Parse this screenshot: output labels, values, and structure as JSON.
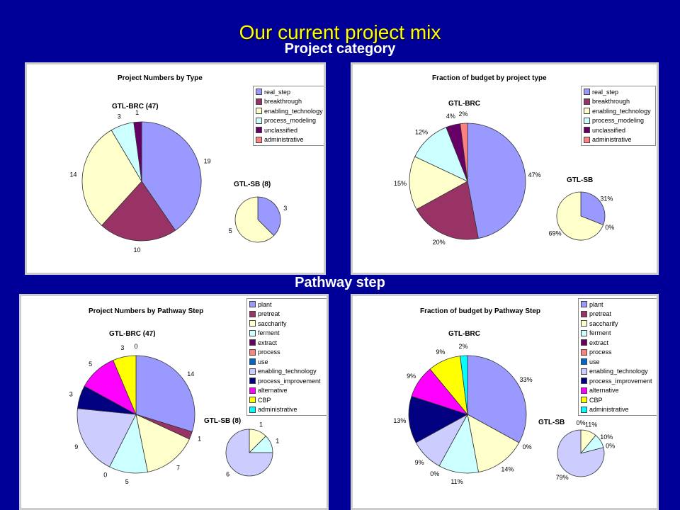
{
  "slide": {
    "title": "Our current project mix",
    "section_category": "Project category",
    "section_pathway": "Pathway step"
  },
  "colors": {
    "background": "#000099",
    "title": "#FFFF00"
  },
  "chart_data": [
    {
      "type": "pie",
      "title": "Project Numbers by Type",
      "legend_position": "top-right",
      "legend": [
        "real_step",
        "breakthrough",
        "enabling_technology",
        "process_modeling",
        "unclassified",
        "administrative"
      ],
      "colors": [
        "#9999FF",
        "#993366",
        "#FFFFCC",
        "#CCFFFF",
        "#660066",
        "#FF8080"
      ],
      "pies": [
        {
          "name": "GTL-BRC (47)",
          "values": [
            19,
            10,
            14,
            3,
            1,
            0
          ],
          "labels": [
            "19",
            "10",
            "14",
            "3",
            "1",
            ""
          ]
        },
        {
          "name": "GTL-SB (8)",
          "values": [
            3,
            0,
            5,
            0,
            0,
            0
          ],
          "labels": [
            "3",
            "",
            "5",
            "",
            "",
            ""
          ]
        }
      ]
    },
    {
      "type": "pie",
      "title": "Fraction of budget by project type",
      "legend_position": "top-right",
      "legend": [
        "real_step",
        "breakthrough",
        "enabling_technology",
        "process_modeling",
        "unclassified",
        "administrative"
      ],
      "colors": [
        "#9999FF",
        "#993366",
        "#FFFFCC",
        "#CCFFFF",
        "#660066",
        "#FF8080"
      ],
      "pies": [
        {
          "name": "GTL-BRC",
          "values": [
            47,
            20,
            15,
            12,
            4,
            2
          ],
          "labels": [
            "47%",
            "20%",
            "15%",
            "12%",
            "4%",
            "2%"
          ]
        },
        {
          "name": "GTL-SB",
          "values": [
            31,
            0,
            69,
            0,
            0,
            0
          ],
          "labels": [
            "31%",
            "0%",
            "69%",
            "",
            "",
            ""
          ]
        }
      ]
    },
    {
      "type": "pie",
      "title": "Project Numbers by Pathway Step",
      "legend_position": "top-right",
      "legend": [
        "plant",
        "pretreat",
        "saccharify",
        "ferment",
        "extract",
        "process",
        "use",
        "enabling_technology",
        "process_improvement",
        "alternative",
        "CBP",
        "administrative"
      ],
      "colors": [
        "#9999FF",
        "#993366",
        "#FFFFCC",
        "#CCFFFF",
        "#660066",
        "#FF8080",
        "#0066CC",
        "#CCCCFF",
        "#000080",
        "#FF00FF",
        "#FFFF00",
        "#00FFFF"
      ],
      "pies": [
        {
          "name": "GTL-BRC (47)",
          "values": [
            14,
            1,
            7,
            5,
            0,
            0,
            0,
            9,
            3,
            5,
            3,
            0
          ],
          "labels": [
            "14",
            "1",
            "7",
            "5",
            "",
            "",
            "0",
            "9",
            "3",
            "5",
            "3",
            "0"
          ]
        },
        {
          "name": "GTL-SB (8)",
          "values": [
            0,
            0,
            1,
            1,
            0,
            0,
            0,
            6,
            0,
            0,
            0,
            0
          ],
          "labels": [
            "",
            "",
            "1",
            "1",
            "",
            "",
            "",
            "6",
            "",
            "",
            "",
            ""
          ]
        }
      ]
    },
    {
      "type": "pie",
      "title": "Fraction of budget by Pathway Step",
      "legend_position": "top-right",
      "legend": [
        "plant",
        "pretreat",
        "saccharify",
        "ferment",
        "extract",
        "process",
        "use",
        "enabling_technology",
        "process_improvement",
        "alternative",
        "CBP",
        "administrative"
      ],
      "colors": [
        "#9999FF",
        "#993366",
        "#FFFFCC",
        "#CCFFFF",
        "#660066",
        "#FF8080",
        "#0066CC",
        "#CCCCFF",
        "#000080",
        "#FF00FF",
        "#FFFF00",
        "#00FFFF"
      ],
      "pies": [
        {
          "name": "GTL-BRC",
          "values": [
            33,
            0,
            14,
            11,
            0,
            0,
            0,
            9,
            13,
            9,
            9,
            2
          ],
          "labels": [
            "33%",
            "0%",
            "14%",
            "11%",
            "",
            "",
            "0%",
            "9%",
            "13%",
            "9%",
            "9%",
            "2%"
          ]
        },
        {
          "name": "GTL-SB",
          "values": [
            0,
            0,
            11,
            10,
            0,
            0,
            0,
            79,
            0,
            0,
            0,
            0
          ],
          "labels": [
            "0%",
            "",
            "11%",
            "10%",
            "0%",
            "",
            "",
            "79%",
            "",
            "",
            "",
            ""
          ]
        }
      ]
    }
  ]
}
